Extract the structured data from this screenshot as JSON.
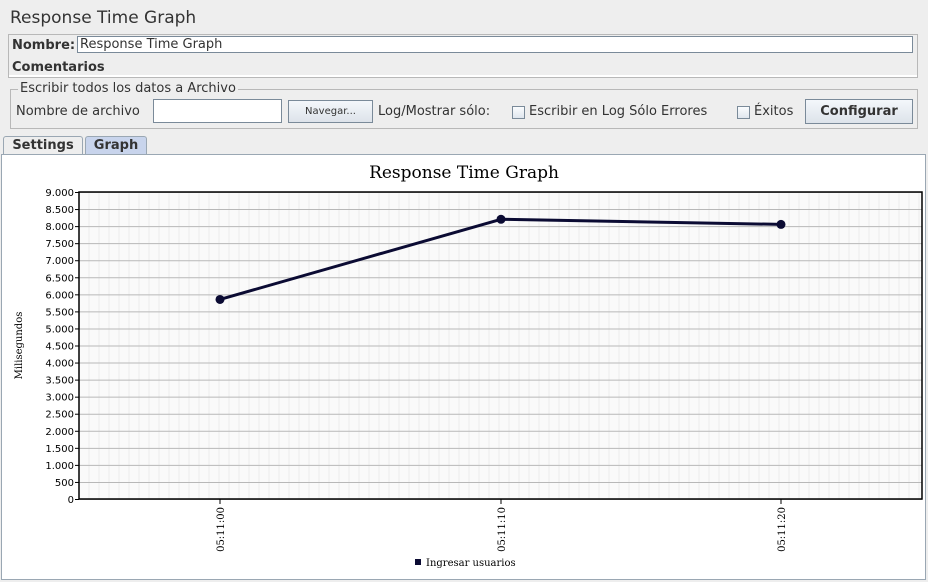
{
  "header": {
    "title": "Response Time Graph"
  },
  "name_panel": {
    "name_label": "Nombre:",
    "name_value": "Response Time Graph",
    "comments_label": "Comentarios"
  },
  "file_panel": {
    "legend": "Escribir todos los datos a Archivo",
    "filename_label": "Nombre de archivo",
    "filename_value": "",
    "browse_label": "Navegar...",
    "log_label": "Log/Mostrar sólo:",
    "errors_label": "Escribir en Log Sólo Errores",
    "errors_checked": false,
    "success_label": "Éxitos",
    "success_checked": false,
    "configure_label": "Configurar"
  },
  "tabs": [
    {
      "label": "Settings",
      "active": false
    },
    {
      "label": "Graph",
      "active": true
    }
  ],
  "chart_data": {
    "type": "line",
    "title": "Response Time Graph",
    "xlabel": "",
    "ylabel": "Milisegundos",
    "x": [
      "05:11:00",
      "05:11:10",
      "05:11:20"
    ],
    "series": [
      {
        "name": "Ingresar usuarios",
        "values": [
          5850,
          8200,
          8050
        ],
        "color": "#0b0b33"
      }
    ],
    "ylim": [
      0,
      9000
    ],
    "yticks": [
      0,
      500,
      1000,
      1500,
      2000,
      2500,
      3000,
      3500,
      4000,
      4500,
      5000,
      5500,
      6000,
      6500,
      7000,
      7500,
      8000,
      8500,
      9000
    ],
    "ytick_labels": [
      "0",
      "500",
      "1.000",
      "1.500",
      "2.000",
      "2.500",
      "3.000",
      "3.500",
      "4.000",
      "4.500",
      "5.000",
      "5.500",
      "6.000",
      "6.500",
      "7.000",
      "7.500",
      "8.000",
      "8.500",
      "9.000"
    ],
    "grid": true,
    "legend_position": "bottom-center"
  }
}
